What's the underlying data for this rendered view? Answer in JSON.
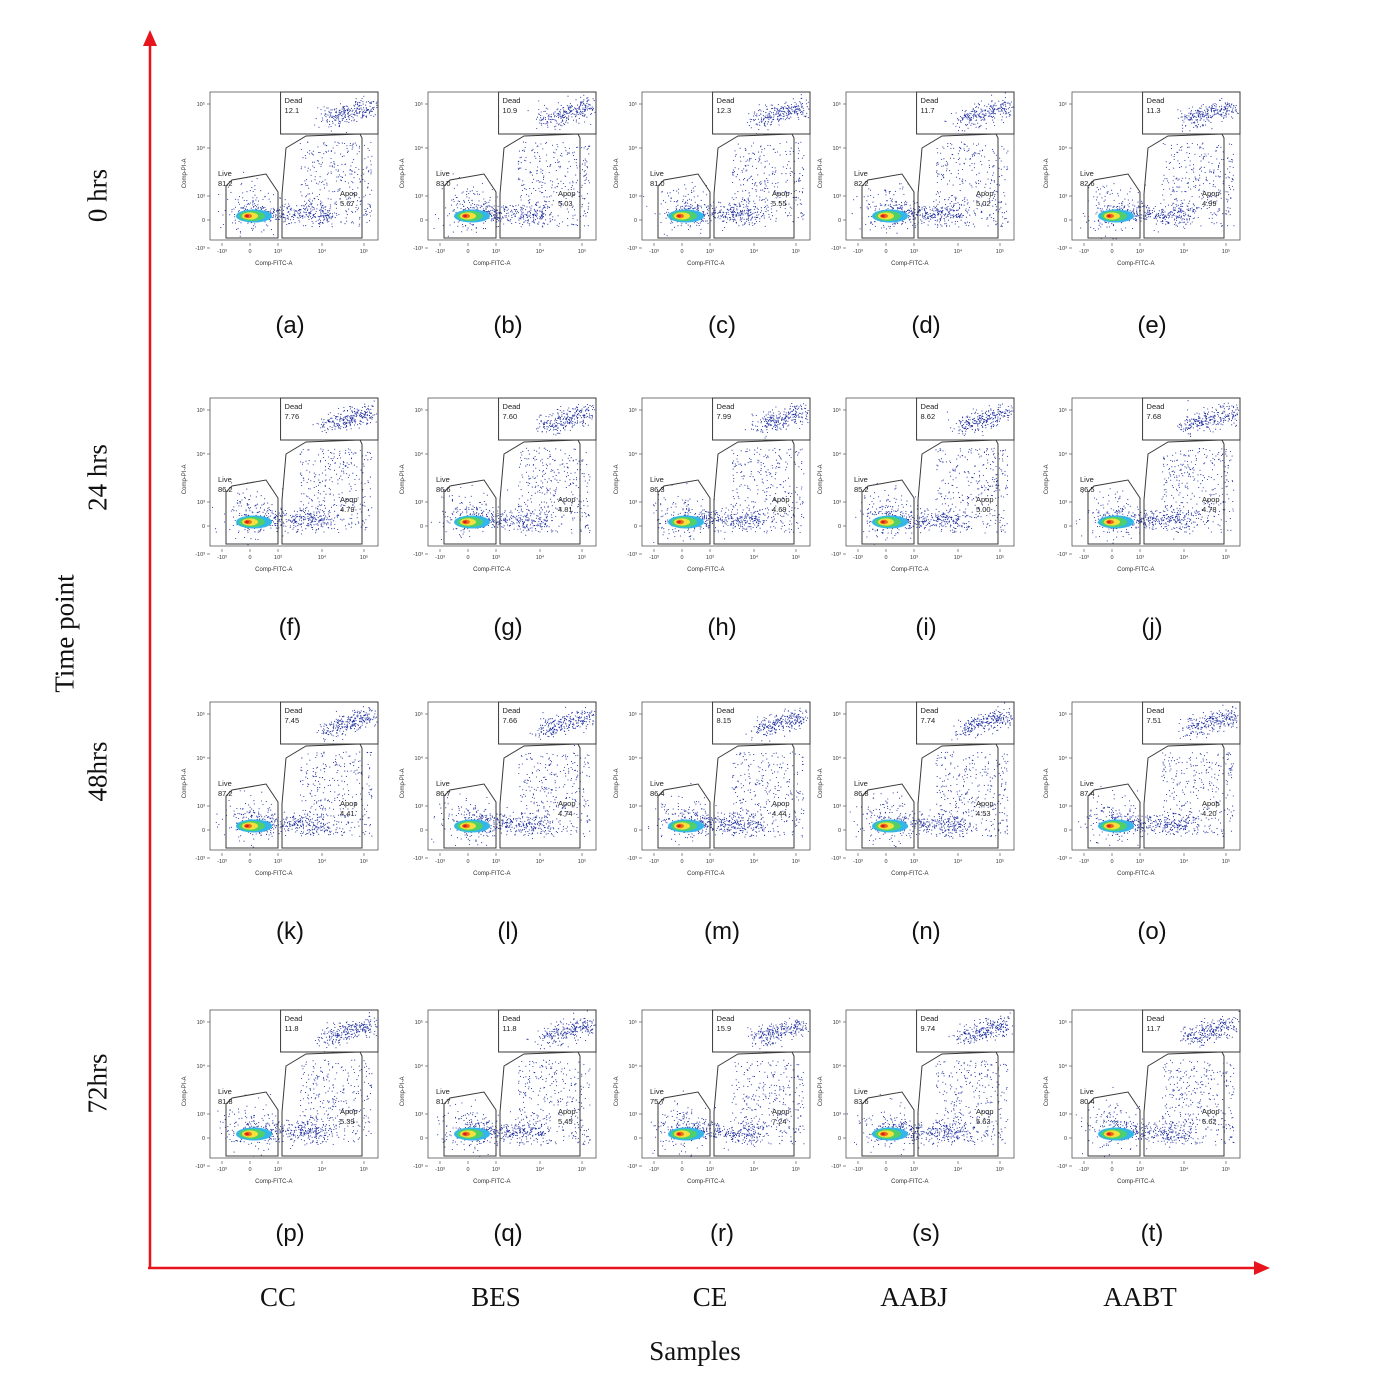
{
  "chart_data": {
    "type": "scatter",
    "title": "",
    "xlabel": "Samples",
    "ylabel": "Time point",
    "columns": [
      "CC",
      "BES",
      "CE",
      "AABJ",
      "AABT"
    ],
    "rows": [
      "0 hrs",
      "24 hrs",
      "48hrs",
      "72hrs"
    ],
    "gate_labels": {
      "dead": "Dead",
      "live": "Live",
      "apop": "Apop"
    },
    "plot_axes": {
      "x_label": "Comp-FITC-A",
      "y_label": "Comp-PI-A",
      "x_ticks": [
        "-10³",
        "0",
        "10³",
        "10⁴",
        "10⁵"
      ],
      "y_ticks": [
        "10⁵",
        "10⁴",
        "10³",
        "0",
        "-10³"
      ]
    },
    "panels": [
      {
        "id": "(a)",
        "row": "0 hrs",
        "sample": "CC",
        "dead": "12.1",
        "live": "81.2",
        "apop": "5.67"
      },
      {
        "id": "(b)",
        "row": "0 hrs",
        "sample": "BES",
        "dead": "10.9",
        "live": "83.0",
        "apop": "5.03"
      },
      {
        "id": "(c)",
        "row": "0 hrs",
        "sample": "CE",
        "dead": "12.3",
        "live": "81.0",
        "apop": "5.55"
      },
      {
        "id": "(d)",
        "row": "0 hrs",
        "sample": "AABJ",
        "dead": "11.7",
        "live": "82.2",
        "apop": "5.02"
      },
      {
        "id": "(e)",
        "row": "0 hrs",
        "sample": "AABT",
        "dead": "11.3",
        "live": "82.6",
        "apop": "4.99"
      },
      {
        "id": "(f)",
        "row": "24 hrs",
        "sample": "CC",
        "dead": "7.76",
        "live": "86.2",
        "apop": "4.79"
      },
      {
        "id": "(g)",
        "row": "24 hrs",
        "sample": "BES",
        "dead": "7.60",
        "live": "86.6",
        "apop": "4.81"
      },
      {
        "id": "(h)",
        "row": "24 hrs",
        "sample": "CE",
        "dead": "7.99",
        "live": "86.3",
        "apop": "4.69"
      },
      {
        "id": "(i)",
        "row": "24 hrs",
        "sample": "AABJ",
        "dead": "8.62",
        "live": "85.2",
        "apop": "5.00"
      },
      {
        "id": "(j)",
        "row": "24 hrs",
        "sample": "AABT",
        "dead": "7.68",
        "live": "86.5",
        "apop": "4.78"
      },
      {
        "id": "(k)",
        "row": "48hrs",
        "sample": "CC",
        "dead": "7.45",
        "live": "87.2",
        "apop": "4.41"
      },
      {
        "id": "(l)",
        "row": "48hrs",
        "sample": "BES",
        "dead": "7.66",
        "live": "86.7",
        "apop": "4.74"
      },
      {
        "id": "(m)",
        "row": "48hrs",
        "sample": "CE",
        "dead": "8.15",
        "live": "86.4",
        "apop": "4.44"
      },
      {
        "id": "(n)",
        "row": "48hrs",
        "sample": "AABJ",
        "dead": "7.74",
        "live": "86.8",
        "apop": "4.53"
      },
      {
        "id": "(o)",
        "row": "48hrs",
        "sample": "AABT",
        "dead": "7.51",
        "live": "87.4",
        "apop": "4.20"
      },
      {
        "id": "(p)",
        "row": "72hrs",
        "sample": "CC",
        "dead": "11.8",
        "live": "81.8",
        "apop": "5.39"
      },
      {
        "id": "(q)",
        "row": "72hrs",
        "sample": "BES",
        "dead": "11.8",
        "live": "81.7",
        "apop": "5.45"
      },
      {
        "id": "(r)",
        "row": "72hrs",
        "sample": "CE",
        "dead": "15.9",
        "live": "75.7",
        "apop": "7.24"
      },
      {
        "id": "(s)",
        "row": "72hrs",
        "sample": "AABJ",
        "dead": "9.74",
        "live": "83.6",
        "apop": "5.63"
      },
      {
        "id": "(t)",
        "row": "72hrs",
        "sample": "AABT",
        "dead": "11.7",
        "live": "80.4",
        "apop": "6.62"
      }
    ]
  },
  "colors": {
    "axis_arrow": "#e8141c",
    "gate_line": "#3a3a3a",
    "dot": "#1a2a9c"
  }
}
